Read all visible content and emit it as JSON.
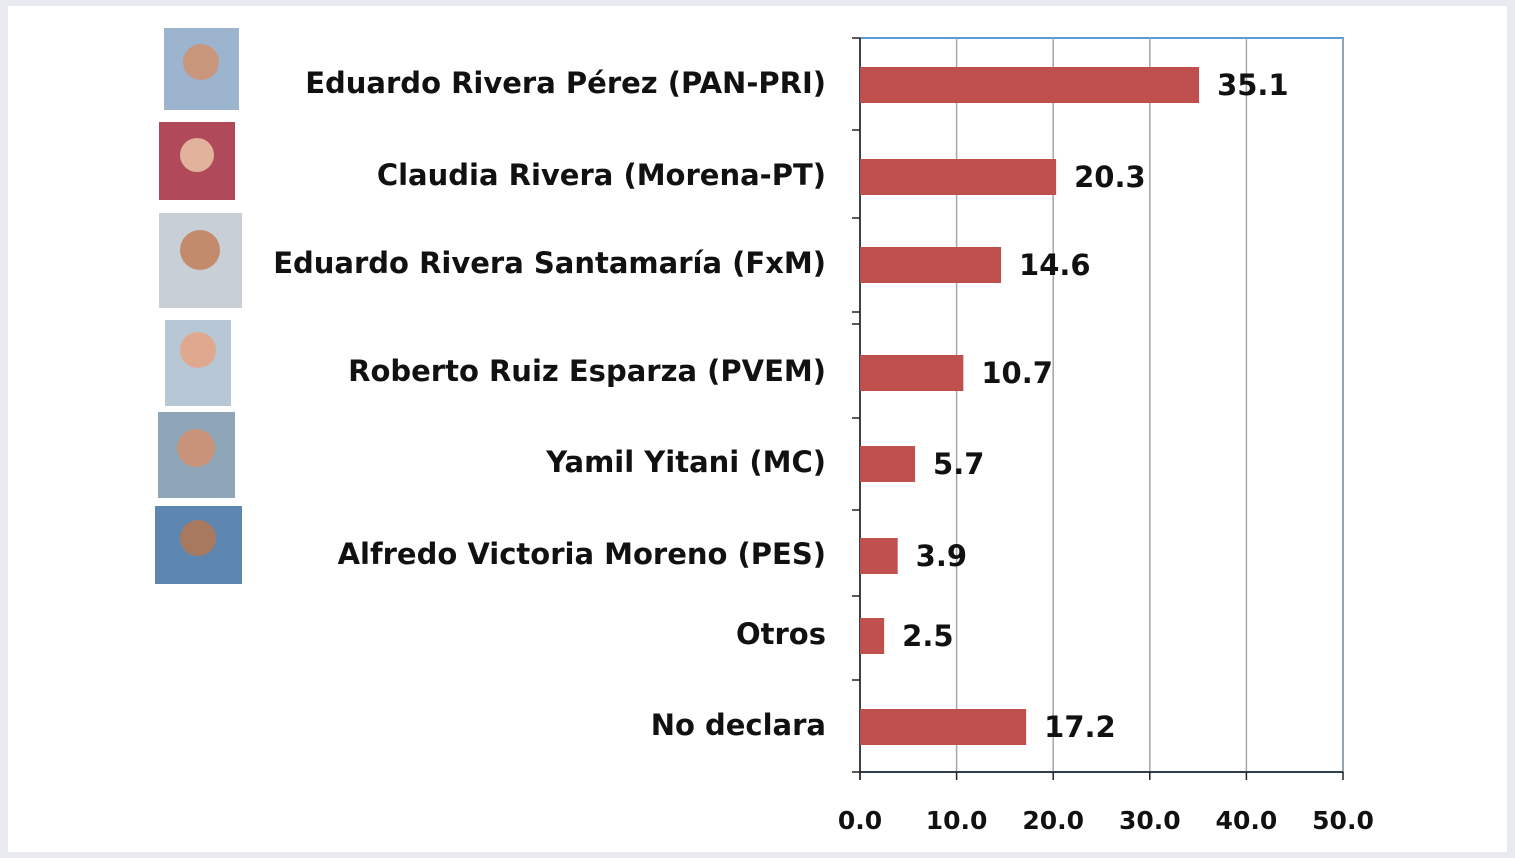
{
  "chart_data": {
    "type": "bar",
    "orientation": "horizontal",
    "categories": [
      "Eduardo Rivera Pérez (PAN-PRI)",
      "Claudia Rivera (Morena-PT)",
      "Eduardo Rivera Santamaría (FxM)",
      "Roberto Ruiz Esparza (PVEM)",
      "Yamil Yitani (MC)",
      "Alfredo Victoria Moreno (PES)",
      "Otros",
      "No declara"
    ],
    "values": [
      35.1,
      20.3,
      14.6,
      10.7,
      5.7,
      3.9,
      2.5,
      17.2
    ],
    "color": "#c0504d",
    "xlim": [
      0,
      50
    ],
    "xticks": [
      {
        "value": 0,
        "label": "0.0"
      },
      {
        "value": 10,
        "label": "10.0"
      },
      {
        "value": 20,
        "label": "20.0"
      },
      {
        "value": 30,
        "label": "30.0"
      },
      {
        "value": 40,
        "label": "40.0"
      },
      {
        "value": 50,
        "label": "50.0"
      }
    ],
    "grid": true
  }
}
